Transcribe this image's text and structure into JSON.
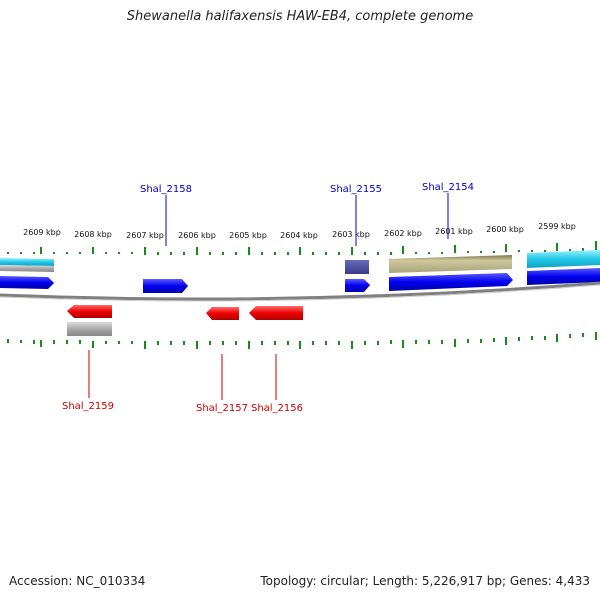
{
  "title": "Shewanella halifaxensis HAW-EB4, complete genome",
  "ruler": {
    "ticks": [
      "2609 kbp",
      "2608 kbp",
      "2607 kbp",
      "2606 kbp",
      "2605 kbp",
      "2604 kbp",
      "2603 kbp",
      "2602 kbp",
      "2601 kbp",
      "2600 kbp",
      "2599 kbp"
    ]
  },
  "genes": {
    "forward": [
      "Shal_2158",
      "Shal_2155",
      "Shal_2154"
    ],
    "reverse": [
      "Shal_2159",
      "Shal_2157",
      "Shal_2156"
    ]
  },
  "colors": {
    "forward_label": "#0000cc",
    "reverse_label": "#cc0000",
    "tick": "#1a8a1a",
    "cds_forward": "#0000ee",
    "cds_reverse": "#ee0000",
    "backbone": "#808080",
    "cyan_feature": "#22c8e8",
    "grey_feature": "#a8a8a8",
    "khaki_feature": "#b7b08a",
    "slate_feature": "#4a4aa0"
  },
  "footer": {
    "accession": "Accession: NC_010334",
    "summary": "Topology: circular; Length: 5,226,917 bp; Genes: 4,433"
  }
}
